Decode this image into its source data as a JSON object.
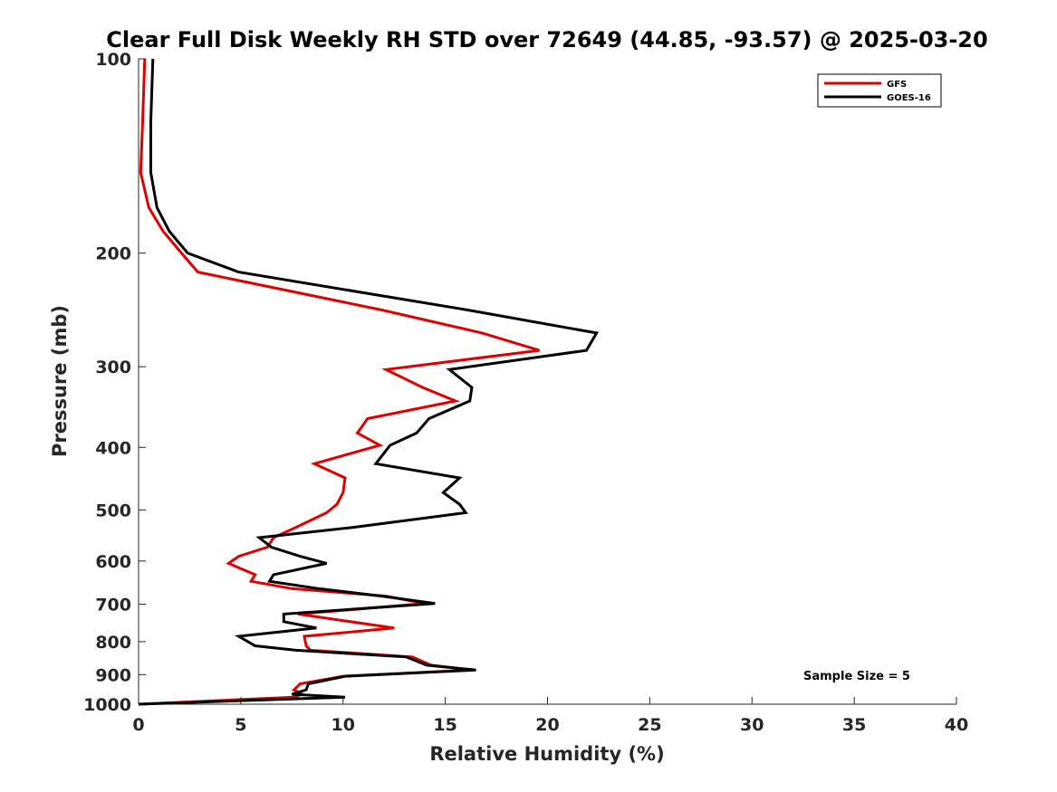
{
  "chart_data": {
    "type": "line",
    "title": "Clear Full Disk Weekly RH STD over 72649 (44.85, -93.57) @ 2025-03-20",
    "xlabel": "Relative Humidity (%)",
    "ylabel": "Pressure (mb)",
    "xlim": [
      0,
      40
    ],
    "ylim": [
      100,
      1000
    ],
    "y_scale": "log",
    "y_reversed": true,
    "x_ticks": [
      "0",
      "5",
      "10",
      "15",
      "20",
      "25",
      "30",
      "35",
      "40"
    ],
    "y_ticks": [
      "100",
      "200",
      "300",
      "400",
      "500",
      "600",
      "700",
      "800",
      "900",
      "1000"
    ],
    "grid": false,
    "legend_position": "top-right",
    "annotation": "Sample Size = 5",
    "series": [
      {
        "name": "GFS",
        "color": "#e00000",
        "points": [
          [
            0.3,
            100
          ],
          [
            0.2,
            125
          ],
          [
            0.1,
            150
          ],
          [
            0.5,
            170
          ],
          [
            1.2,
            185
          ],
          [
            2.1,
            200
          ],
          [
            2.9,
            214
          ],
          [
            11.9,
            245
          ],
          [
            16.8,
            266
          ],
          [
            19.6,
            283
          ],
          [
            12.1,
            303
          ],
          [
            13.9,
            323
          ],
          [
            15.5,
            339
          ],
          [
            11.2,
            361
          ],
          [
            10.7,
            380
          ],
          [
            11.8,
            397
          ],
          [
            8.6,
            424
          ],
          [
            10.1,
            446
          ],
          [
            10.0,
            470
          ],
          [
            9.7,
            490
          ],
          [
            9.2,
            505
          ],
          [
            7.7,
            532
          ],
          [
            6.6,
            552
          ],
          [
            6.3,
            571
          ],
          [
            4.9,
            590
          ],
          [
            4.4,
            605
          ],
          [
            5.7,
            630
          ],
          [
            5.5,
            645
          ],
          [
            7.5,
            662
          ],
          [
            12.1,
            680
          ],
          [
            14.0,
            698
          ],
          [
            7.8,
            725
          ],
          [
            12.5,
            762
          ],
          [
            8.1,
            785
          ],
          [
            8.2,
            812
          ],
          [
            8.4,
            825
          ],
          [
            13.4,
            845
          ],
          [
            14.3,
            870
          ],
          [
            16.3,
            885
          ],
          [
            10.0,
            905
          ],
          [
            7.9,
            930
          ],
          [
            7.6,
            950
          ],
          [
            8.0,
            965
          ],
          [
            7.6,
            975
          ],
          [
            0.0,
            1000
          ]
        ]
      },
      {
        "name": "GOES-16",
        "color": "#000000",
        "points": [
          [
            0.7,
            100
          ],
          [
            0.6,
            125
          ],
          [
            0.6,
            150
          ],
          [
            0.9,
            170
          ],
          [
            1.5,
            185
          ],
          [
            2.4,
            200
          ],
          [
            4.9,
            214
          ],
          [
            16.1,
            245
          ],
          [
            22.4,
            266
          ],
          [
            21.9,
            283
          ],
          [
            15.2,
            303
          ],
          [
            16.3,
            323
          ],
          [
            16.2,
            339
          ],
          [
            14.2,
            361
          ],
          [
            13.6,
            380
          ],
          [
            12.3,
            397
          ],
          [
            11.6,
            424
          ],
          [
            15.7,
            446
          ],
          [
            14.9,
            470
          ],
          [
            15.7,
            490
          ],
          [
            16.0,
            505
          ],
          [
            10.5,
            532
          ],
          [
            5.9,
            552
          ],
          [
            6.5,
            571
          ],
          [
            7.9,
            590
          ],
          [
            9.2,
            605
          ],
          [
            6.6,
            630
          ],
          [
            6.4,
            645
          ],
          [
            8.8,
            662
          ],
          [
            11.9,
            680
          ],
          [
            14.5,
            698
          ],
          [
            7.1,
            725
          ],
          [
            7.1,
            745
          ],
          [
            8.7,
            762
          ],
          [
            4.9,
            785
          ],
          [
            5.7,
            812
          ],
          [
            7.7,
            825
          ],
          [
            13.1,
            845
          ],
          [
            14.1,
            870
          ],
          [
            16.5,
            885
          ],
          [
            10.1,
            905
          ],
          [
            8.3,
            930
          ],
          [
            8.2,
            950
          ],
          [
            7.5,
            965
          ],
          [
            10.1,
            975
          ],
          [
            0.0,
            1000
          ]
        ]
      }
    ]
  }
}
